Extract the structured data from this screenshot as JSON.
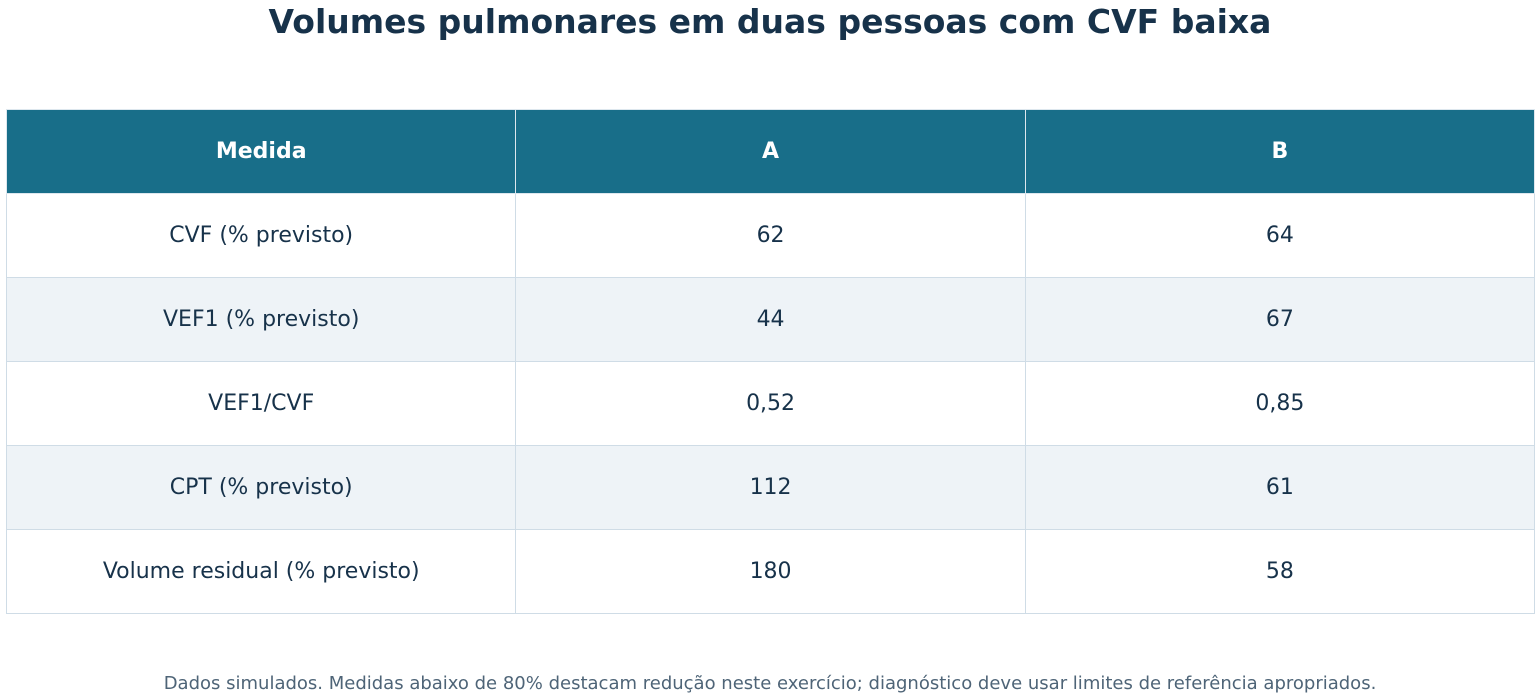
{
  "chart_data": {
    "type": "table",
    "title": "Volumes pulmonares em duas pessoas com CVF baixa",
    "columns": [
      "Medida",
      "A",
      "B"
    ],
    "rows": [
      [
        "CVF (% previsto)",
        "62",
        "64"
      ],
      [
        "VEF1 (% previsto)",
        "44",
        "67"
      ],
      [
        "VEF1/CVF",
        "0,52",
        "0,85"
      ],
      [
        "CPT (% previsto)",
        "112",
        "61"
      ],
      [
        "Volume residual (% previsto)",
        "180",
        "58"
      ]
    ],
    "footnote": "Dados simulados. Medidas abaixo de 80% destacam redução neste exercício; diagnóstico deve usar limites de referência apropriados."
  },
  "colors": {
    "header_background": "#186e89",
    "header_text": "#ffffff",
    "title_text": "#17324a",
    "row_alt_background": "#eef3f7",
    "grid_line": "#cfdce6",
    "footnote_text": "#4e6477"
  }
}
